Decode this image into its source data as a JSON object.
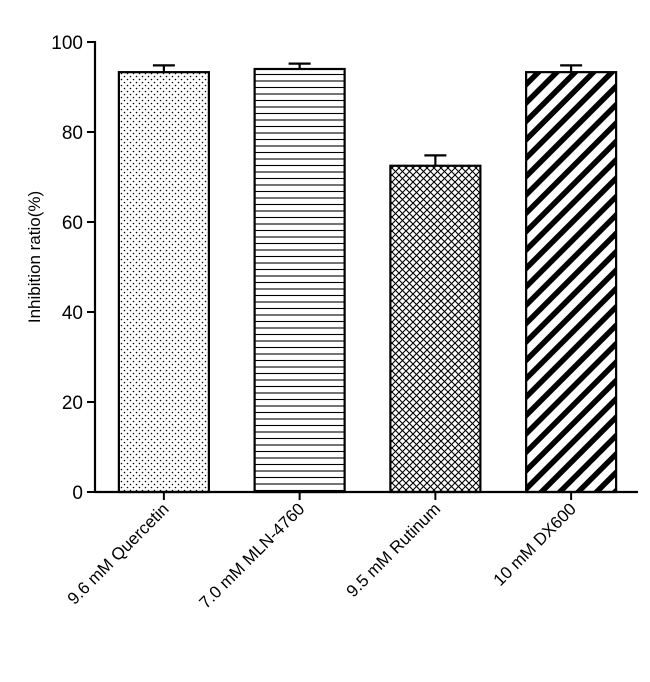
{
  "chart_data": {
    "type": "bar",
    "title": "",
    "xlabel": "",
    "ylabel": "Inhibition ratio(%)",
    "ylim": [
      0,
      100
    ],
    "yticks": [
      0,
      20,
      40,
      60,
      80,
      100
    ],
    "categories": [
      "9.6 mM Quercetin",
      "7.0 mM MLN-4760",
      "9.5 mM Rutinum",
      "10 mM DX600"
    ],
    "values": [
      93.3,
      94.0,
      72.5,
      93.3
    ],
    "errors": [
      1.5,
      1.2,
      2.3,
      1.5
    ],
    "patterns": [
      "dots",
      "horizontal-lines",
      "crosshatch",
      "diagonal-stripes"
    ],
    "grid": false,
    "legend": "none"
  }
}
